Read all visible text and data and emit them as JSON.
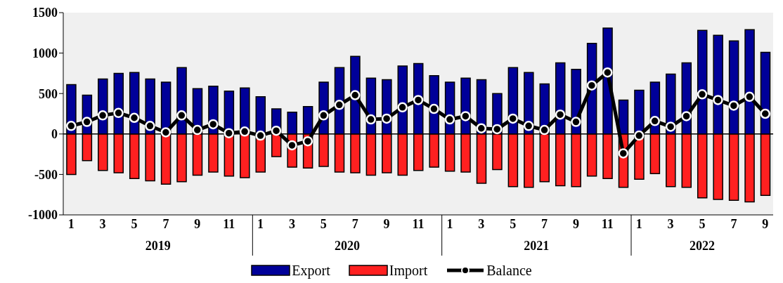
{
  "chart_data": {
    "type": "bar",
    "stacked": true,
    "categories": [
      "1",
      null,
      "3",
      null,
      "5",
      null,
      "7",
      null,
      "9",
      null,
      "11",
      null,
      "1",
      null,
      "3",
      null,
      "5",
      null,
      "7",
      null,
      "9",
      null,
      "11",
      null,
      "1",
      null,
      "3",
      null,
      "5",
      null,
      "7",
      null,
      "9",
      null,
      "11",
      null,
      "1",
      null,
      "3",
      null,
      "5",
      null,
      "7",
      null,
      "9"
    ],
    "annotations": [
      "2019",
      "2020",
      "2021",
      "2022"
    ],
    "series": [
      {
        "name": "Export",
        "color": "#000099",
        "values": [
          610,
          480,
          680,
          750,
          760,
          680,
          640,
          820,
          560,
          590,
          530,
          570,
          460,
          310,
          270,
          340,
          640,
          820,
          960,
          690,
          670,
          840,
          870,
          720,
          640,
          690,
          670,
          500,
          820,
          760,
          620,
          880,
          800,
          1120,
          1310,
          420,
          540,
          640,
          740,
          880,
          1280,
          1220,
          1150,
          1290,
          1010
        ]
      },
      {
        "name": "Import",
        "color": "#ff2020",
        "values": [
          -500,
          -330,
          -450,
          -480,
          -550,
          -580,
          -620,
          -590,
          -510,
          -470,
          -520,
          -540,
          -470,
          -280,
          -410,
          -420,
          -400,
          -470,
          -480,
          -510,
          -480,
          -510,
          -450,
          -410,
          -460,
          -470,
          -610,
          -440,
          -650,
          -660,
          -590,
          -640,
          -650,
          -520,
          -550,
          -660,
          -560,
          -490,
          -650,
          -660,
          -790,
          -810,
          -820,
          -840,
          -760
        ]
      },
      {
        "name": "Balance",
        "type": "line",
        "color": "#000000",
        "values": [
          100,
          150,
          230,
          260,
          200,
          100,
          20,
          230,
          50,
          120,
          10,
          30,
          -20,
          40,
          -140,
          -90,
          230,
          360,
          480,
          180,
          190,
          330,
          420,
          310,
          180,
          220,
          70,
          60,
          190,
          100,
          50,
          240,
          150,
          600,
          760,
          -240,
          -20,
          160,
          90,
          220,
          490,
          420,
          350,
          460,
          250
        ]
      }
    ],
    "ylim": [
      -1000,
      1500
    ],
    "yticks": [
      -1000,
      -500,
      0,
      500,
      1000,
      1500
    ],
    "ref_lines": [
      {
        "axis": "y",
        "value": 0,
        "color": "#000000"
      }
    ],
    "marker": "circle",
    "legend": "bottom"
  }
}
